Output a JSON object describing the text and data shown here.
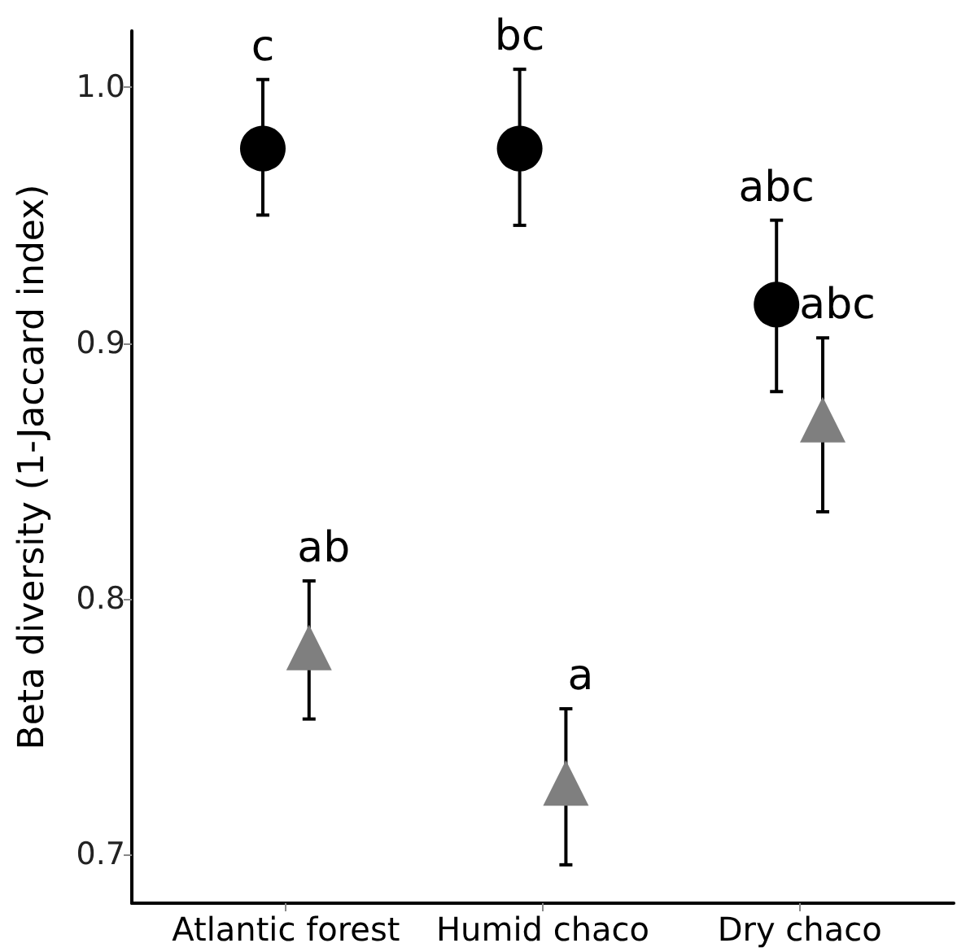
{
  "chart_data": {
    "type": "scatter",
    "ylabel": "Beta diversity (1-Jaccard index)",
    "categories": [
      "Atlantic forest",
      "Humid chaco",
      "Dry chaco"
    ],
    "series": [
      {
        "color": "#000000",
        "marker": "circle",
        "values": [
          0.976,
          0.976,
          0.915
        ],
        "errors": [
          [
            0.95,
            1.003
          ],
          [
            0.946,
            1.007
          ],
          [
            0.881,
            0.948
          ]
        ],
        "value_labels": [
          "c",
          "bc",
          "abc"
        ]
      },
      {
        "color": "#7f7f7f",
        "marker": "triangle",
        "values": [
          0.781,
          0.728,
          0.87
        ],
        "errors": [
          [
            0.753,
            0.807
          ],
          [
            0.696,
            0.757
          ],
          [
            0.834,
            0.902
          ]
        ],
        "value_labels": [
          "ab",
          "a",
          "abc"
        ]
      }
    ],
    "ylim": [
      0.681,
      1.022
    ],
    "yticks": [
      {
        "value": 0.7,
        "label": "0.7"
      },
      {
        "value": 0.8,
        "label": "0.8"
      },
      {
        "value": 0.9,
        "label": "0.9"
      },
      {
        "value": 1.0,
        "label": "1.0"
      }
    ],
    "grid": false
  }
}
